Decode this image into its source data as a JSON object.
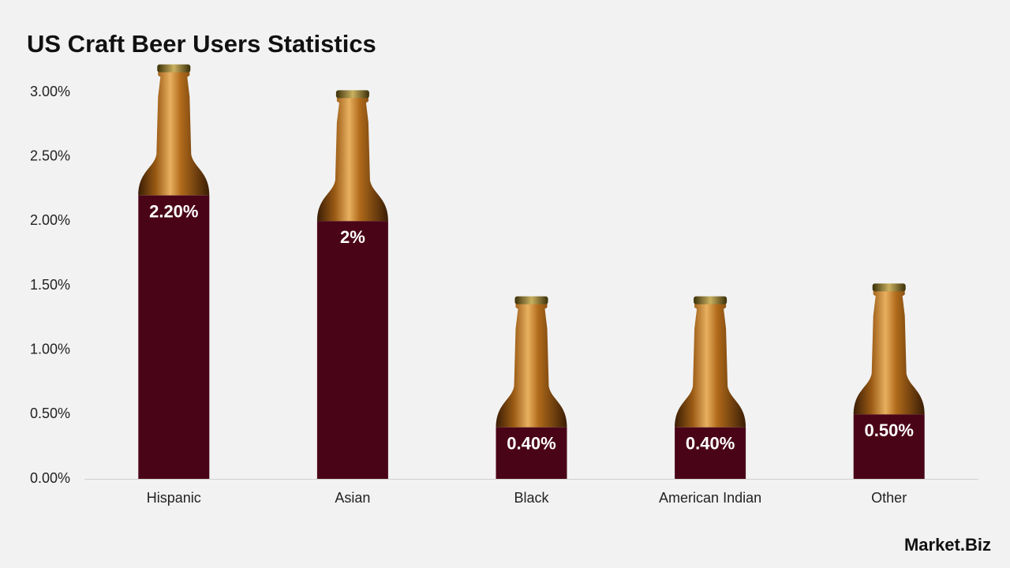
{
  "chart_data": {
    "type": "bar",
    "title": "US Craft Beer Users Statistics",
    "categories": [
      "Hispanic",
      "Asian",
      "Black",
      "American Indian",
      "Other"
    ],
    "values": [
      2.2,
      2,
      0.4,
      0.4,
      0.5
    ],
    "value_labels": [
      "2.20%",
      "2%",
      "0.40%",
      "0.40%",
      "0.50%"
    ],
    "color": "#4a0418",
    "ylim": [
      0,
      3
    ],
    "yticks": [
      {
        "value": 0,
        "label": "0.00%"
      },
      {
        "value": 0.5,
        "label": "0.50%"
      },
      {
        "value": 1,
        "label": "1.00%"
      },
      {
        "value": 1.5,
        "label": "1.50%"
      },
      {
        "value": 2,
        "label": "2.00%"
      },
      {
        "value": 2.5,
        "label": "2.50%"
      },
      {
        "value": 3,
        "label": "3.00%"
      }
    ],
    "grid": false,
    "watermark": "Market.Biz"
  }
}
